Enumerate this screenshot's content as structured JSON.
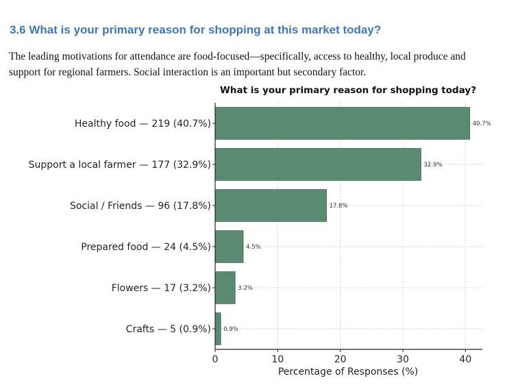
{
  "section": {
    "heading": "3.6 What is your primary reason for shopping at this market today?",
    "paragraph": "The leading motivations for attendance are food-focused—specifically, access to healthy, local produce and support for regional farmers. Social interaction is an important but secondary factor."
  },
  "chart_data": {
    "type": "bar",
    "orientation": "horizontal",
    "title": "What is your primary reason for shopping today?",
    "xlabel": "Percentage of Responses (%)",
    "ylabel": "",
    "categories": [
      "Healthy food — 219 (40.7%)",
      "Support a local farmer — 177 (32.9%)",
      "Social / Friends — 96 (17.8%)",
      "Prepared food — 24 (4.5%)",
      "Flowers — 17 (3.2%)",
      "Crafts — 5 (0.9%)"
    ],
    "values": [
      40.7,
      32.9,
      17.8,
      4.5,
      3.2,
      0.9
    ],
    "data_labels": [
      "40.7%",
      "32.9%",
      "17.8%",
      "4.5%",
      "3.2%",
      "0.9%"
    ],
    "xticks": [
      0,
      10,
      20,
      30,
      40
    ],
    "xlim": [
      0,
      42.7
    ],
    "grid": "x-dashed",
    "bar_color": "#5a8a72"
  }
}
